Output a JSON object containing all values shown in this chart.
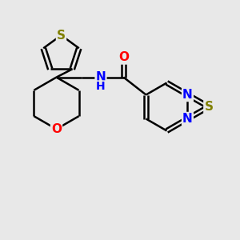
{
  "background_color": "#e8e8e8",
  "bond_color": "#000000",
  "atom_colors": {
    "S_th": "#808000",
    "S_td": "#808000",
    "O": "#ff0000",
    "N": "#0000ff",
    "NH": "#0000ff"
  },
  "line_width": 1.8,
  "font_size_atom": 11,
  "fig_width": 3.0,
  "fig_height": 3.0,
  "dpi": 100,
  "xlim": [
    0,
    10
  ],
  "ylim": [
    0,
    10
  ]
}
